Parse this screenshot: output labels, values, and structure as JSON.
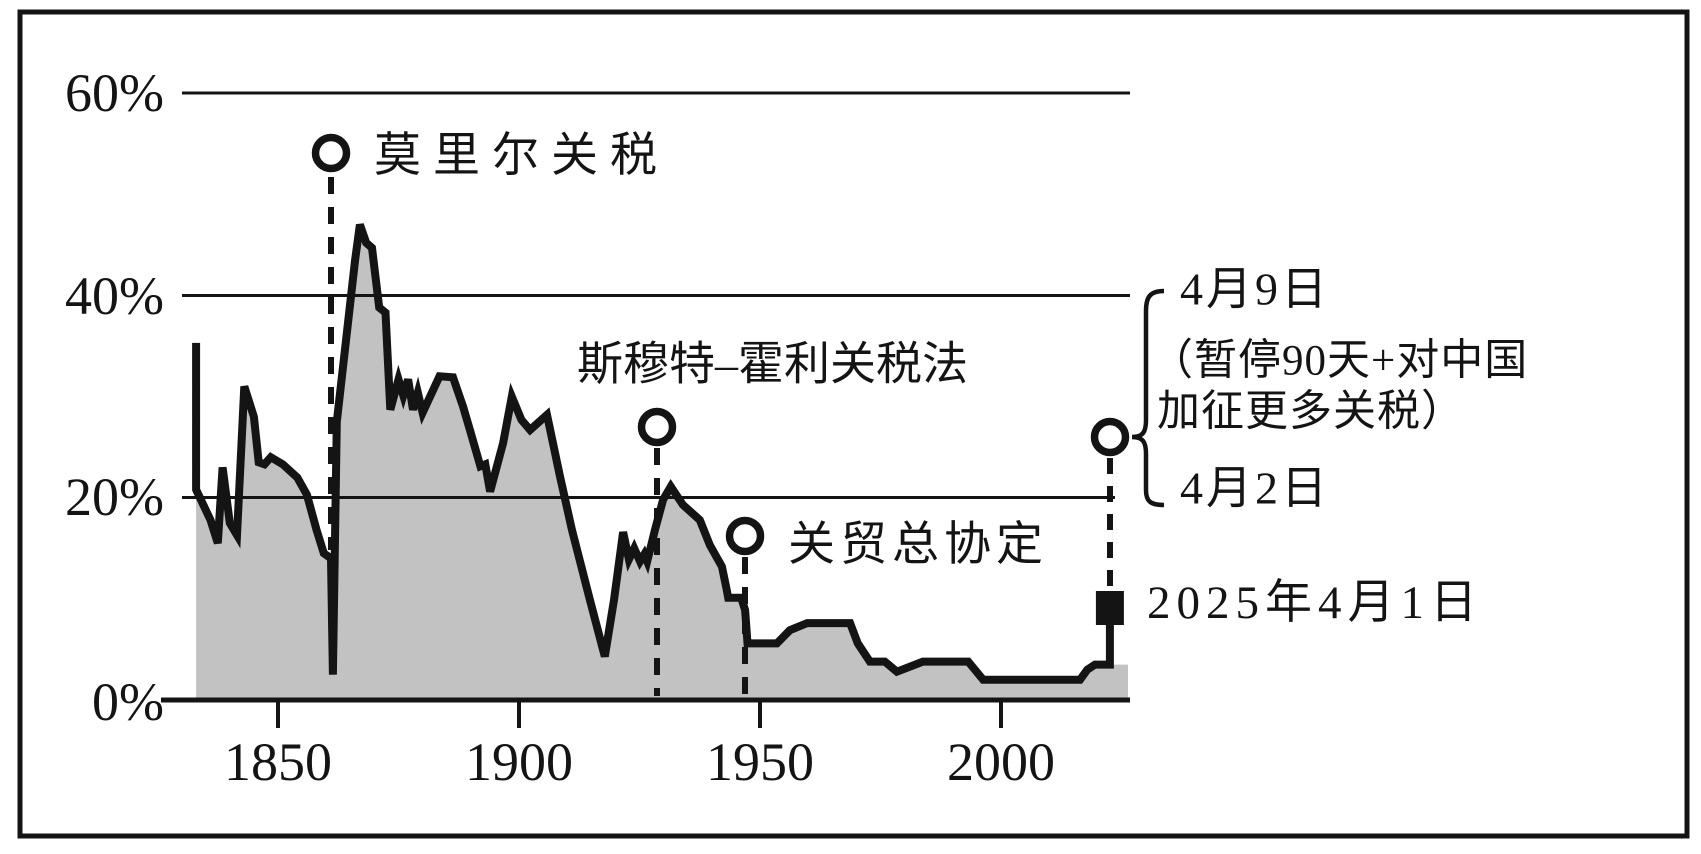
{
  "page": {
    "background": "#ffffff",
    "frame_color": "#141414"
  },
  "chart_data": {
    "type": "area",
    "title": "",
    "xlabel": "",
    "ylabel": "",
    "grid": "horizontal",
    "line_color": "#141414",
    "fill_color": "#c2c2c2",
    "x_axis": {
      "tick_labels": [
        "1850",
        "1900",
        "1950",
        "2000"
      ],
      "tick_years": [
        1850,
        1900,
        1950,
        2000
      ],
      "range_years": [
        1833,
        2026
      ]
    },
    "y_axis": {
      "tick_labels": [
        "0%",
        "20%",
        "40%",
        "60%"
      ],
      "tick_values": [
        0,
        20,
        40,
        60
      ],
      "gridline_values": [
        20,
        40,
        60
      ],
      "unit": "%",
      "ylim": [
        0,
        62
      ]
    },
    "series": [
      {
        "points": [
          [
            1833,
            35.3
          ],
          [
            1833,
            20.8
          ],
          [
            1836,
            17.8
          ],
          [
            1837.5,
            15.5
          ],
          [
            1838.5,
            23.0
          ],
          [
            1840,
            17.5
          ],
          [
            1841.5,
            16.3
          ],
          [
            1843,
            31.0
          ],
          [
            1845,
            28.0
          ],
          [
            1846,
            23.5
          ],
          [
            1847.2,
            23.3
          ],
          [
            1848.5,
            24.0
          ],
          [
            1851,
            23.3
          ],
          [
            1854,
            22.0
          ],
          [
            1856,
            20.3
          ],
          [
            1858,
            16.8
          ],
          [
            1859.5,
            14.5
          ],
          [
            1861,
            14.0
          ],
          [
            1861.4,
            2.5
          ],
          [
            1862.2,
            27.5
          ],
          [
            1866,
            43.5
          ],
          [
            1867,
            47.0
          ],
          [
            1868.3,
            45.2
          ],
          [
            1869.5,
            44.7
          ],
          [
            1871,
            38.8
          ],
          [
            1872.3,
            38.3
          ],
          [
            1873.3,
            28.7
          ],
          [
            1875,
            31.7
          ],
          [
            1876,
            30.1
          ],
          [
            1877,
            31.7
          ],
          [
            1878,
            28.7
          ],
          [
            1879,
            30.4
          ],
          [
            1880,
            28.4
          ],
          [
            1883.5,
            32.0
          ],
          [
            1886.3,
            31.9
          ],
          [
            1888.4,
            29.0
          ],
          [
            1890,
            26.4
          ],
          [
            1892,
            23.1
          ],
          [
            1893,
            23.3
          ],
          [
            1894,
            20.6
          ],
          [
            1896.7,
            25.4
          ],
          [
            1898.5,
            30.0
          ],
          [
            1900.5,
            27.7
          ],
          [
            1902.3,
            26.7
          ],
          [
            1905.8,
            28.2
          ],
          [
            1908.5,
            22.1
          ],
          [
            1911,
            16.8
          ],
          [
            1914.7,
            9.9
          ],
          [
            1917.8,
            4.3
          ],
          [
            1919.7,
            9.9
          ],
          [
            1921.6,
            16.6
          ],
          [
            1922.8,
            13.9
          ],
          [
            1923.9,
            15.0
          ],
          [
            1925.1,
            13.7
          ],
          [
            1926,
            14.4
          ],
          [
            1926.6,
            13.7
          ],
          [
            1928.2,
            16.8
          ],
          [
            1929.9,
            19.8
          ],
          [
            1931.5,
            21.1
          ],
          [
            1934,
            19.3
          ],
          [
            1937.5,
            17.8
          ],
          [
            1939.6,
            15.3
          ],
          [
            1942.1,
            13.2
          ],
          [
            1943.1,
            10.9
          ],
          [
            1943.4,
            10.1
          ],
          [
            1946.1,
            10.1
          ],
          [
            1946.9,
            8.9
          ],
          [
            1947.4,
            5.6
          ],
          [
            1953.5,
            5.6
          ],
          [
            1956.2,
            6.9
          ],
          [
            1959.8,
            7.6
          ],
          [
            1968.7,
            7.6
          ],
          [
            1970.3,
            5.6
          ],
          [
            1972.8,
            3.8
          ],
          [
            1975.9,
            3.8
          ],
          [
            1978.4,
            2.8
          ],
          [
            1983.8,
            3.8
          ],
          [
            1993.2,
            3.8
          ],
          [
            1996.3,
            2.0
          ],
          [
            2016.4,
            2.0
          ],
          [
            2017.9,
            3.0
          ],
          [
            2019.5,
            3.5
          ],
          [
            2022.6,
            3.5
          ]
        ]
      }
    ],
    "end_marker": {
      "shape": "square",
      "value": 9.1,
      "label": "2025年4月1日"
    },
    "annotations": [
      {
        "id": "morrill",
        "label": "莫里尔关税",
        "year": 1861,
        "marker": "circle",
        "marker_value": 54
      },
      {
        "id": "smoot-hawley",
        "label": "斯穆特–霍利关税法",
        "year": 1929,
        "marker": "circle",
        "marker_value": 27
      },
      {
        "id": "gatt",
        "label": "关贸总协定",
        "year": 1947,
        "marker": "circle",
        "marker_value": 16
      },
      {
        "id": "april-2025",
        "year": 2025,
        "marker": "circle",
        "marker_value": 26,
        "label_top": "4月9日",
        "label_note_line1": "（暂停90天+对中国",
        "label_note_line2": "加征更多关税）",
        "label_bottom": "4月2日"
      }
    ]
  }
}
